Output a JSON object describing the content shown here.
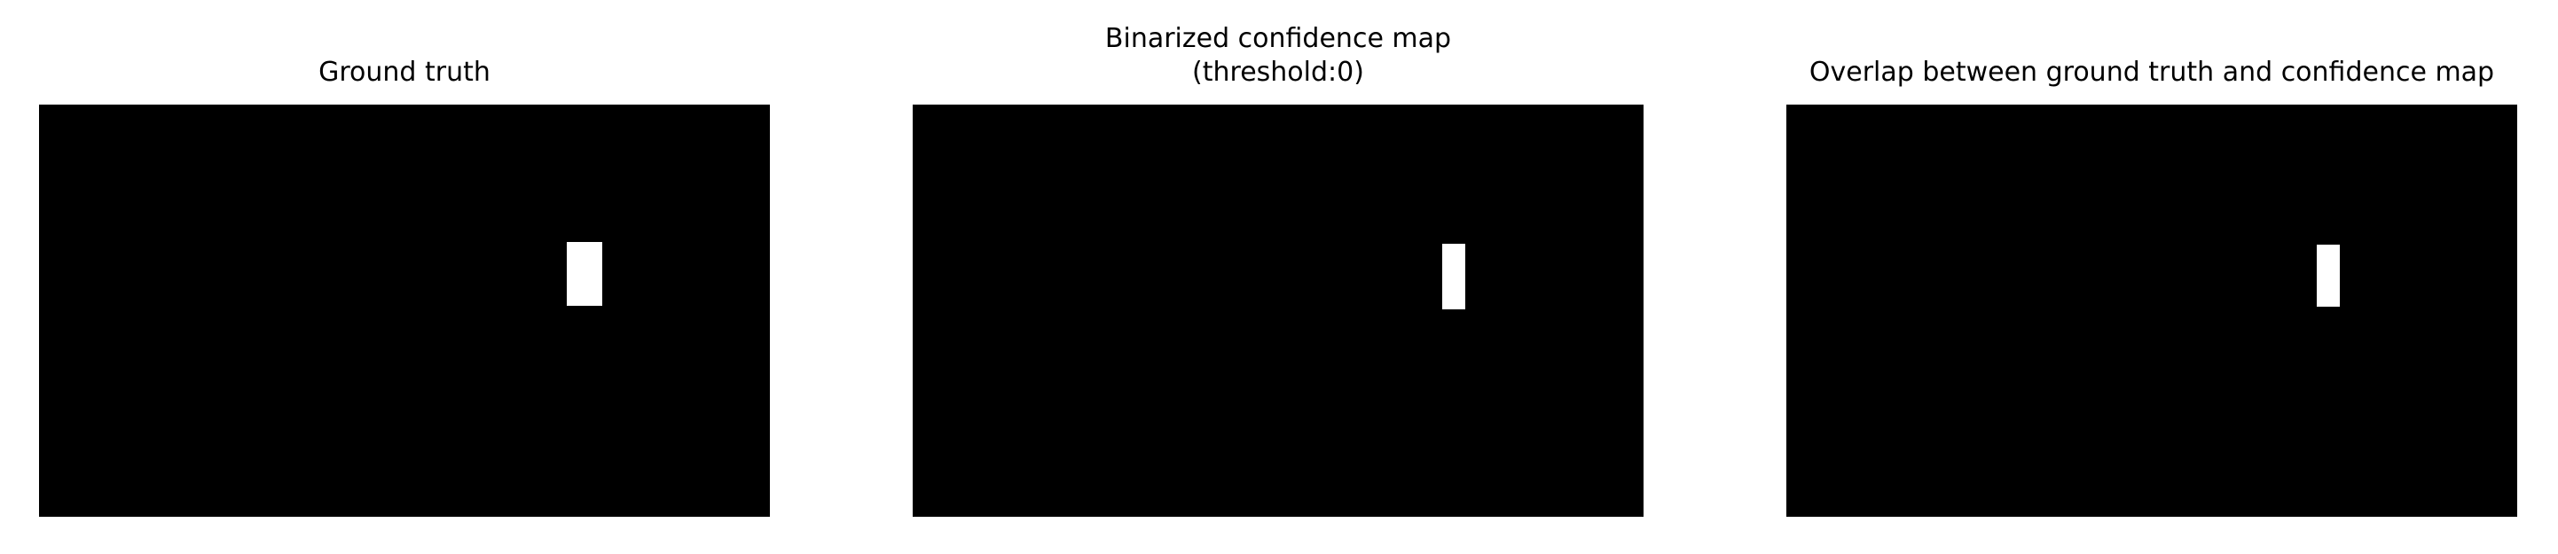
{
  "panels": [
    {
      "title": [
        "Ground truth"
      ]
    },
    {
      "title": [
        "Binarized confidence map",
        "(threshold:0)"
      ]
    },
    {
      "title": [
        "Overlap between ground truth and confidence map"
      ]
    }
  ],
  "colors": {
    "background": "#000000",
    "foreground": "#ffffff"
  }
}
